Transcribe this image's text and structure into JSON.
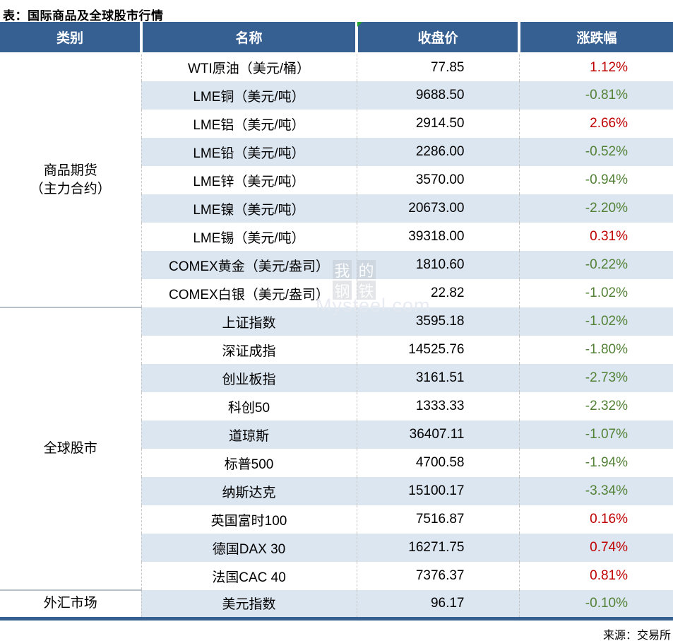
{
  "title": "表：国际商品及全球股市行情",
  "header": {
    "category": "类别",
    "name": "名称",
    "close": "收盘价",
    "change": "涨跌幅"
  },
  "groups": [
    {
      "label": "商品期货",
      "label2": "（主力合约）",
      "rows": [
        {
          "name": "WTI原油（美元/桶）",
          "close": "77.85",
          "change": "1.12%",
          "dir": "up"
        },
        {
          "name": "LME铜（美元/吨）",
          "close": "9688.50",
          "change": "-0.81%",
          "dir": "down"
        },
        {
          "name": "LME铝（美元/吨）",
          "close": "2914.50",
          "change": "2.66%",
          "dir": "up"
        },
        {
          "name": "LME铅（美元/吨）",
          "close": "2286.00",
          "change": "-0.52%",
          "dir": "down"
        },
        {
          "name": "LME锌（美元/吨）",
          "close": "3570.00",
          "change": "-0.94%",
          "dir": "down"
        },
        {
          "name": "LME镍（美元/吨）",
          "close": "20673.00",
          "change": "-2.20%",
          "dir": "down"
        },
        {
          "name": "LME锡（美元/吨）",
          "close": "39318.00",
          "change": "0.31%",
          "dir": "up"
        },
        {
          "name": "COMEX黄金（美元/盎司）",
          "close": "1810.60",
          "change": "-0.22%",
          "dir": "down"
        },
        {
          "name": "COMEX白银（美元/盎司）",
          "close": "22.82",
          "change": "-1.02%",
          "dir": "down"
        }
      ]
    },
    {
      "label": "全球股市",
      "label2": "",
      "rows": [
        {
          "name": "上证指数",
          "close": "3595.18",
          "change": "-1.02%",
          "dir": "down"
        },
        {
          "name": "深证成指",
          "close": "14525.76",
          "change": "-1.80%",
          "dir": "down"
        },
        {
          "name": "创业板指",
          "close": "3161.51",
          "change": "-2.73%",
          "dir": "down"
        },
        {
          "name": "科创50",
          "close": "1333.33",
          "change": "-2.32%",
          "dir": "down"
        },
        {
          "name": "道琼斯",
          "close": "36407.11",
          "change": "-1.07%",
          "dir": "down"
        },
        {
          "name": "标普500",
          "close": "4700.58",
          "change": "-1.94%",
          "dir": "down"
        },
        {
          "name": "纳斯达克",
          "close": "15100.17",
          "change": "-3.34%",
          "dir": "down"
        },
        {
          "name": "英国富时100",
          "close": "7516.87",
          "change": "0.16%",
          "dir": "up"
        },
        {
          "name": "德国DAX 30",
          "close": "16271.75",
          "change": "0.74%",
          "dir": "up"
        },
        {
          "name": "法国CAC 40",
          "close": "7376.37",
          "change": "0.81%",
          "dir": "up"
        }
      ]
    },
    {
      "label": "外汇市场",
      "label2": "",
      "rows": [
        {
          "name": "美元指数",
          "close": "96.17",
          "change": "-0.10%",
          "dir": "down"
        }
      ]
    }
  ],
  "footer": "来源：交易所",
  "watermark": {
    "chars": [
      "我",
      "的",
      "钢",
      "铁"
    ],
    "domain": "Mysteel.com"
  },
  "colors": {
    "header_bg": "#376092",
    "stripe": "#dce6f1",
    "up_red": "#c00000",
    "down_green": "#538135",
    "comment_flag_green": "#21a42a"
  }
}
